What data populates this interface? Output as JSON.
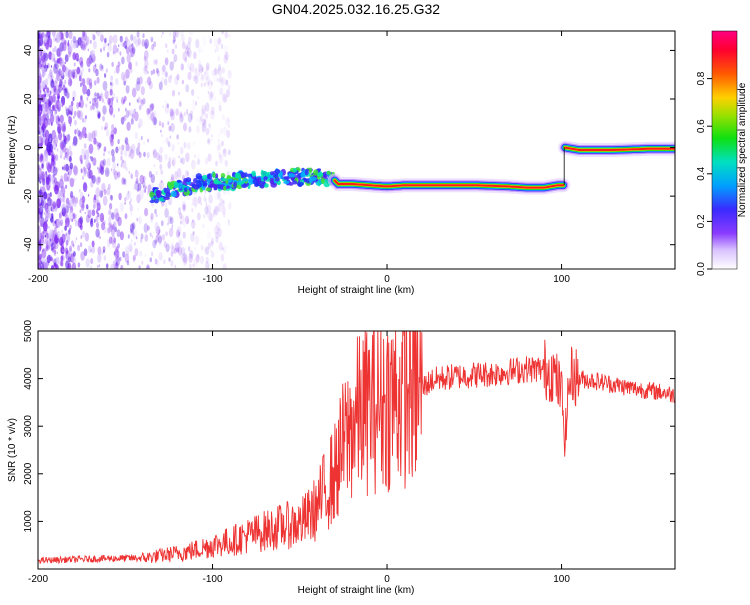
{
  "title": "GN04.2025.032.16.25.G32",
  "chart_data": [
    {
      "type": "heatmap",
      "xlabel": "Height of straight line (km)",
      "ylabel": "Frequency (Hz)",
      "xlim": [
        -200,
        165
      ],
      "ylim": [
        -50,
        48
      ],
      "x_ticks": [
        -200,
        -100,
        0,
        100
      ],
      "y_ticks": [
        -40,
        -20,
        0,
        20,
        40
      ],
      "colorbar": {
        "label": "Normalized spectral amplitude",
        "range": [
          0,
          1
        ],
        "ticks": [
          "0.0",
          "0.2",
          "0.4",
          "0.6",
          "0.8"
        ]
      },
      "ridge": {
        "x": [
          -135,
          -120,
          -110,
          -100,
          -90,
          -80,
          -70,
          -60,
          -50,
          -40,
          -32,
          -28,
          -20,
          -10,
          0,
          10,
          30,
          50,
          70,
          80,
          90,
          98,
          101,
          102,
          110,
          130,
          150,
          165
        ],
        "y": [
          -20,
          -17,
          -15,
          -14,
          -14,
          -13,
          -13,
          -12,
          -12,
          -12,
          -12,
          -15,
          -15,
          -15.5,
          -16,
          -15.5,
          -15.5,
          -15.5,
          -16,
          -16.5,
          -16.5,
          -15.5,
          -15.5,
          0,
          -1,
          -1,
          -0.5,
          -0.5
        ]
      }
    },
    {
      "type": "line",
      "xlabel": "Height of straight line (km)",
      "ylabel": "SNR (10 * v/v)",
      "xlim": [
        -200,
        165
      ],
      "ylim": [
        0,
        5000
      ],
      "x_ticks": [
        -200,
        -100,
        0,
        100
      ],
      "y_ticks": [
        1000,
        2000,
        3000,
        4000,
        5000
      ],
      "color": "#ee3333",
      "series": [
        {
          "x": [
            -200,
            -180,
            -160,
            -140,
            -130,
            -120,
            -110,
            -100,
            -90,
            -80,
            -70,
            -60,
            -50,
            -45,
            -40,
            -35,
            -30,
            -25,
            -20,
            -15,
            -10,
            -5,
            0,
            10,
            20,
            25,
            30,
            40,
            50,
            60,
            70,
            80,
            90,
            95,
            100,
            102,
            104,
            106,
            110,
            120,
            140,
            160,
            165
          ],
          "y": [
            180,
            200,
            220,
            230,
            280,
            330,
            400,
            500,
            580,
            700,
            800,
            900,
            950,
            1100,
            1300,
            1700,
            2000,
            2600,
            3000,
            3300,
            3400,
            3500,
            3550,
            3700,
            3800,
            3950,
            4000,
            4050,
            4080,
            4100,
            4150,
            4200,
            4200,
            4150,
            3700,
            2700,
            3800,
            4100,
            4000,
            3950,
            3800,
            3700,
            3650
          ]
        }
      ]
    }
  ]
}
